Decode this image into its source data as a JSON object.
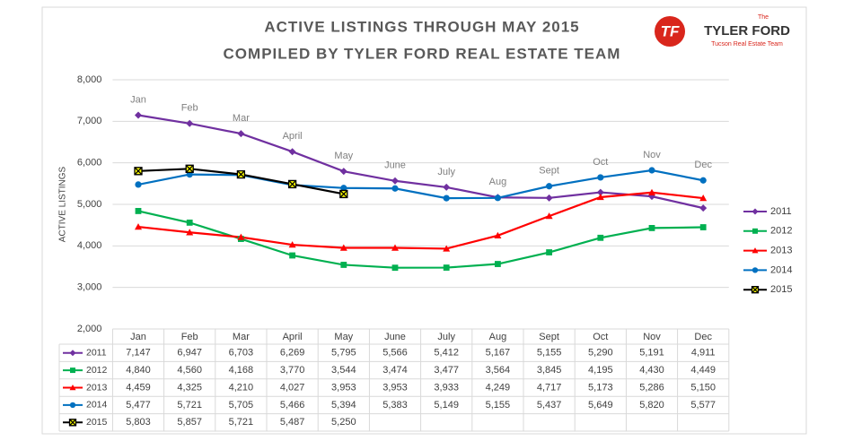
{
  "chart_data": {
    "type": "line",
    "title": [
      "ACTIVE LISTINGS THROUGH MAY 2015",
      "COMPILED BY TYLER FORD REAL ESTATE TEAM"
    ],
    "logo": {
      "mark": "TF",
      "top": "The",
      "name": "TYLER FORD",
      "tagline": "Tucson Real Estate Team"
    },
    "y_label": "ACTIVE LISTINGS",
    "categories": [
      "Jan",
      "Feb",
      "Mar",
      "April",
      "May",
      "June",
      "July",
      "Aug",
      "Sept",
      "Oct",
      "Nov",
      "Dec"
    ],
    "ylim": [
      2000,
      8000
    ],
    "yticks": [
      {
        "value": 2000,
        "label": "2,000"
      },
      {
        "value": 3000,
        "label": "3,000"
      },
      {
        "value": 4000,
        "label": "4,000"
      },
      {
        "value": 5000,
        "label": "5,000"
      },
      {
        "value": 6000,
        "label": "6,000"
      },
      {
        "value": 7000,
        "label": "7,000"
      },
      {
        "value": 8000,
        "label": "8,000"
      }
    ],
    "grid": true,
    "legend": "right",
    "series": [
      {
        "name": "2011",
        "color": "#7030a0",
        "marker": "diamond",
        "values": [
          7147,
          6947,
          6703,
          6269,
          5795,
          5566,
          5412,
          5167,
          5155,
          5290,
          5191,
          4911
        ],
        "value_labels": [
          "7,147",
          "6,947",
          "6,703",
          "6,269",
          "5,795",
          "5,566",
          "5,412",
          "5,167",
          "5,155",
          "5,290",
          "5,191",
          "4,911"
        ]
      },
      {
        "name": "2012",
        "color": "#00b050",
        "marker": "square",
        "values": [
          4840,
          4560,
          4168,
          3770,
          3544,
          3474,
          3477,
          3564,
          3845,
          4195,
          4430,
          4449
        ],
        "value_labels": [
          "4,840",
          "4,560",
          "4,168",
          "3,770",
          "3,544",
          "3,474",
          "3,477",
          "3,564",
          "3,845",
          "4,195",
          "4,430",
          "4,449"
        ]
      },
      {
        "name": "2013",
        "color": "#ff0000",
        "marker": "triangle",
        "values": [
          4459,
          4325,
          4210,
          4027,
          3953,
          3953,
          3933,
          4249,
          4717,
          5173,
          5286,
          5150
        ],
        "value_labels": [
          "4,459",
          "4,325",
          "4,210",
          "4,027",
          "3,953",
          "3,953",
          "3,933",
          "4,249",
          "4,717",
          "5,173",
          "5,286",
          "5,150"
        ]
      },
      {
        "name": "2014",
        "color": "#0070c0",
        "marker": "circle",
        "values": [
          5477,
          5721,
          5705,
          5466,
          5394,
          5383,
          5149,
          5155,
          5437,
          5649,
          5820,
          5577
        ],
        "value_labels": [
          "5,477",
          "5,721",
          "5,705",
          "5,466",
          "5,394",
          "5,383",
          "5,149",
          "5,155",
          "5,437",
          "5,649",
          "5,820",
          "5,577"
        ]
      },
      {
        "name": "2015",
        "color": "#000000",
        "marker": "x",
        "values": [
          5803,
          5857,
          5721,
          5487,
          5250,
          null,
          null,
          null,
          null,
          null,
          null,
          null
        ],
        "value_labels": [
          "5,803",
          "5,857",
          "5,721",
          "5,487",
          "5,250",
          null,
          null,
          null,
          null,
          null,
          null,
          null
        ]
      }
    ]
  }
}
